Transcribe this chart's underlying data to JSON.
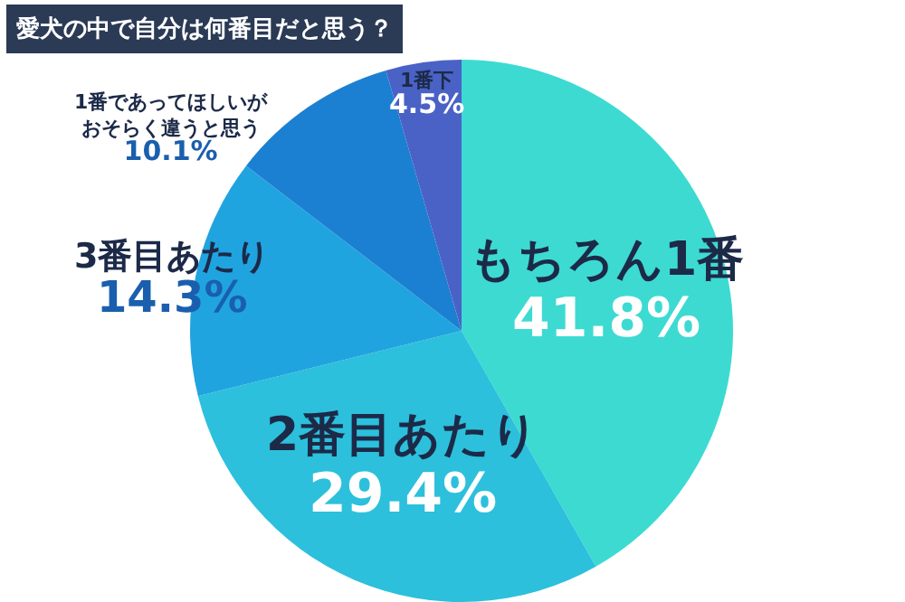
{
  "chart_data": {
    "type": "pie",
    "title": "愛犬の中で自分は何番目だと思う？",
    "categories": [
      "もちろん1番",
      "2番目あたり",
      "3番目あたり",
      "1番であってほしいがおそらく違うと思う",
      "1番下"
    ],
    "values": [
      41.8,
      29.4,
      14.3,
      10.1,
      4.5
    ],
    "value_labels": [
      "41.8%",
      "29.4%",
      "14.3%",
      "10.1%",
      "4.5%"
    ],
    "colors": [
      "#3ddad2",
      "#2cc0dc",
      "#20a4e0",
      "#1c80d2",
      "#4a62c6"
    ],
    "legend": false
  }
}
